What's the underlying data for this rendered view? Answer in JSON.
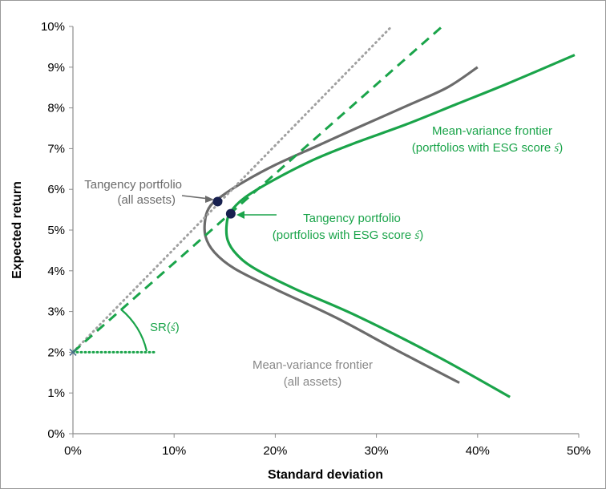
{
  "chart_data": {
    "type": "line",
    "xlabel": "Standard deviation",
    "ylabel": "Expected return",
    "xlim": [
      0,
      50
    ],
    "ylim": [
      0,
      10
    ],
    "x_ticks": [
      "0%",
      "10%",
      "20%",
      "30%",
      "40%",
      "50%"
    ],
    "y_ticks": [
      "0%",
      "1%",
      "2%",
      "3%",
      "4%",
      "5%",
      "6%",
      "7%",
      "8%",
      "9%",
      "10%"
    ],
    "grid": false,
    "colors": {
      "all_assets": "#6b6b6b",
      "esg": "#1aa44a",
      "tangency_point": "#17204f",
      "cml_all": "#a0a0a0"
    },
    "risk_free_rate": 2.0,
    "series": [
      {
        "points": [
          [
            38.2,
            1.25
          ],
          [
            32,
            2.05
          ],
          [
            26,
            2.85
          ],
          [
            20,
            3.55
          ],
          [
            16,
            4.05
          ],
          [
            14,
            4.45
          ],
          [
            13.1,
            4.85
          ],
          [
            13.1,
            5.3
          ],
          [
            13.6,
            5.6
          ],
          [
            14.8,
            5.85
          ],
          [
            17,
            6.2
          ],
          [
            20,
            6.6
          ],
          [
            24,
            7.05
          ],
          [
            28,
            7.5
          ],
          [
            33,
            8.05
          ],
          [
            37,
            8.5
          ],
          [
            40,
            9.0
          ]
        ]
      },
      {
        "points": [
          [
            43.2,
            0.9
          ],
          [
            36,
            1.9
          ],
          [
            28,
            2.9
          ],
          [
            22,
            3.55
          ],
          [
            18,
            4.05
          ],
          [
            16.2,
            4.4
          ],
          [
            15.3,
            4.75
          ],
          [
            15.2,
            5.15
          ],
          [
            15.6,
            5.45
          ],
          [
            17,
            5.8
          ],
          [
            20,
            6.25
          ],
          [
            24,
            6.75
          ],
          [
            28,
            7.15
          ],
          [
            33,
            7.6
          ],
          [
            38,
            8.1
          ],
          [
            43,
            8.6
          ],
          [
            49.6,
            9.3
          ]
        ]
      },
      {
        "points": [
          [
            0,
            2.0
          ],
          [
            31.5,
            10.0
          ]
        ],
        "style": "dotted"
      },
      {
        "points": [
          [
            0,
            2.0
          ],
          [
            36.5,
            10.0
          ]
        ],
        "style": "dashed"
      }
    ],
    "tangency_points": [
      {
        "x": 14.3,
        "y": 5.7
      },
      {
        "x": 15.6,
        "y": 5.4
      }
    ],
    "risk_free_point": {
      "x": 0,
      "y": 2.0,
      "marker": "x"
    },
    "sharpe_baseline": {
      "x": [
        0,
        8.2
      ],
      "y": 2.0,
      "style": "dotted"
    },
    "annotations": {
      "tangency_all": [
        "Tangency portfolio",
        "(all assets)"
      ],
      "tangency_esg": [
        "Tangency portfolio",
        "(portfolios with ESG score "
      ],
      "frontier_esg": [
        "Mean-variance  frontier",
        "(portfolios with ESG score "
      ],
      "frontier_all": [
        "Mean-variance frontier",
        "(all assets)"
      ],
      "sr_label": "SR(",
      "sr_close": ")",
      "esg_symbol": "ś",
      "close_paren": ")"
    }
  }
}
